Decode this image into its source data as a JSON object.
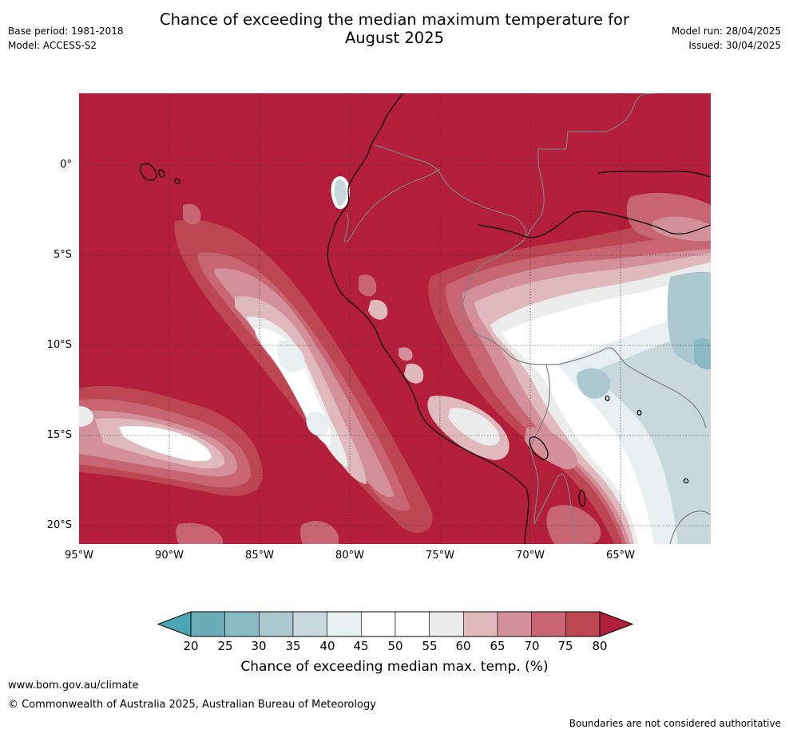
{
  "header": {
    "title_line1": "Chance of exceeding the median maximum temperature for",
    "title_line2": "August 2025",
    "base_period": "Base period: 1981-2018",
    "model": "Model: ACCESS-S2",
    "model_run": "Model run: 28/04/2025",
    "issued": "Issued: 30/04/2025"
  },
  "map": {
    "lon_range": [
      -95,
      -60
    ],
    "lat_range": [
      -21,
      4
    ],
    "lat_ticks": [
      {
        "value": 0,
        "label": "0°"
      },
      {
        "value": -5,
        "label": "5°S"
      },
      {
        "value": -10,
        "label": "10°S"
      },
      {
        "value": -15,
        "label": "15°S"
      },
      {
        "value": -20,
        "label": "20°S"
      }
    ],
    "lon_ticks": [
      {
        "value": -95,
        "label": "95°W"
      },
      {
        "value": -90,
        "label": "90°W"
      },
      {
        "value": -85,
        "label": "85°W"
      },
      {
        "value": -80,
        "label": "80°W"
      },
      {
        "value": -75,
        "label": "75°W"
      },
      {
        "value": -70,
        "label": "70°W"
      },
      {
        "value": -65,
        "label": "65°W"
      }
    ],
    "gridlines": true,
    "background_category_color": "#b31e3a"
  },
  "colorbar": {
    "title": "Chance of exceeding median max. temp. (%)",
    "ticks": [
      "20",
      "25",
      "30",
      "35",
      "40",
      "45",
      "50",
      "55",
      "60",
      "65",
      "70",
      "75",
      "80"
    ],
    "low_extend_color": "#4ca6b3",
    "high_extend_color": "#b31e3a",
    "colors": [
      "#6aacb8",
      "#8bbac4",
      "#aac8ce",
      "#c8d8dc",
      "#e8eff1",
      "#ffffff",
      "#ffffff",
      "#ececec",
      "#e0b9bd",
      "#d4909a",
      "#c76672",
      "#bd4653"
    ]
  },
  "footer": {
    "website": "www.bom.gov.au/climate",
    "copyright": "© Commonwealth of Australia 2025, Australian Bureau of Meteorology",
    "disclaimer": "Boundaries are not considered authoritative"
  }
}
